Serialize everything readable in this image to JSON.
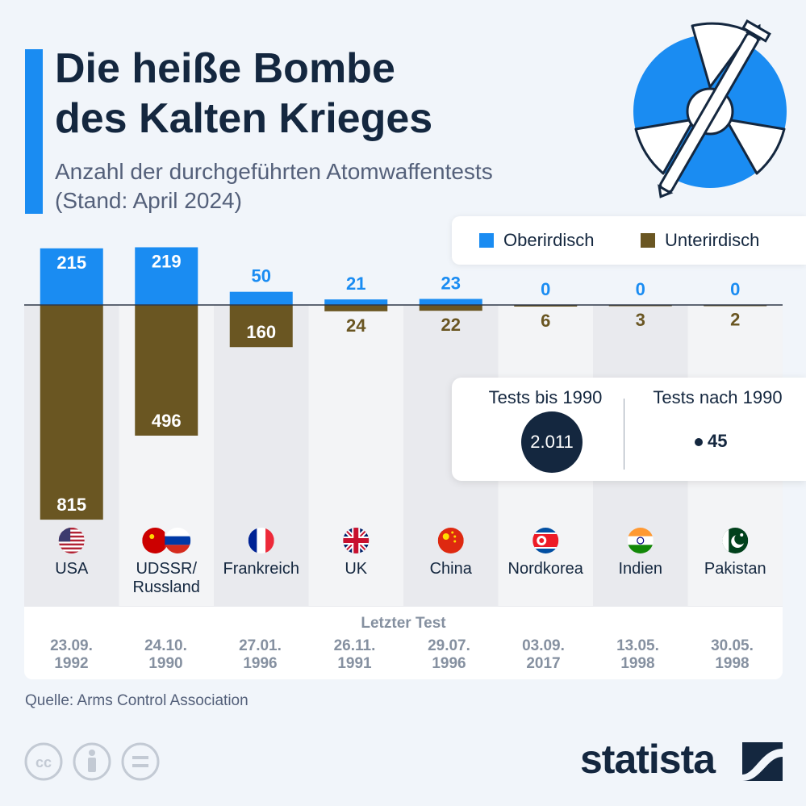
{
  "title_lines": [
    "Die heiße Bombe",
    "des Kalten Krieges"
  ],
  "subtitle_lines": [
    "Anzahl der durchgeführten Atomwaffentests",
    "(Stand: April 2024)"
  ],
  "legend": {
    "above": "Oberirdisch",
    "below": "Unterirdisch"
  },
  "colors": {
    "above": "#1a8cf2",
    "below": "#6a5622",
    "title": "#14273f",
    "accent": "#1a8cf2"
  },
  "chart_data": {
    "type": "bar",
    "categories": [
      "USA",
      "UDSSR/ Russland",
      "Frankreich",
      "UK",
      "China",
      "Nordkorea",
      "Indien",
      "Pakistan"
    ],
    "series": [
      {
        "name": "Oberirdisch",
        "values": [
          215,
          219,
          50,
          21,
          23,
          0,
          0,
          0
        ]
      },
      {
        "name": "Unterirdisch",
        "values": [
          815,
          496,
          160,
          24,
          22,
          6,
          3,
          2
        ]
      }
    ],
    "flag_icons": [
      "usa-flag-icon",
      "ussr-russia-flags-icon",
      "france-flag-icon",
      "uk-flag-icon",
      "china-flag-icon",
      "north-korea-flag-icon",
      "india-flag-icon",
      "pakistan-flag-icon"
    ]
  },
  "stats": {
    "before_label": "Tests bis 1990",
    "before_value": "2.011",
    "after_label": "Tests nach 1990",
    "after_value": "45"
  },
  "last_test": {
    "title": "Letzter Test",
    "dates": [
      [
        "23.09.",
        "1992"
      ],
      [
        "24.10.",
        "1990"
      ],
      [
        "27.01.",
        "1996"
      ],
      [
        "26.11.",
        "1991"
      ],
      [
        "29.07.",
        "1996"
      ],
      [
        "03.09.",
        "2017"
      ],
      [
        "13.05.",
        "1998"
      ],
      [
        "30.05.",
        "1998"
      ]
    ]
  },
  "source": "Quelle: Arms Control Association",
  "brand": "statista",
  "license_icons": [
    "cc-icon",
    "attribution-icon",
    "no-derivatives-icon"
  ]
}
